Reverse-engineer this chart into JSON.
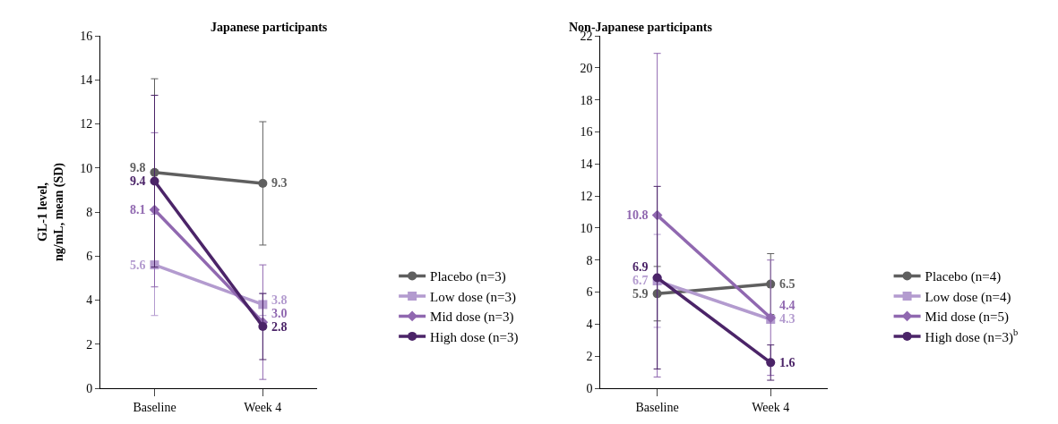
{
  "chart_data": [
    {
      "type": "line",
      "title": "Japanese participants",
      "ylabel": "GL-1 level,\nng/mL, mean (SD)",
      "categories": [
        "Baseline",
        "Week 4"
      ],
      "ylim": [
        0,
        16
      ],
      "yticks": [
        0,
        2,
        4,
        6,
        8,
        10,
        12,
        14,
        16
      ],
      "grid": false,
      "legend": "right",
      "series": [
        {
          "name": "Placebo (n=3)",
          "color": "#5f5f5f",
          "marker": "circle",
          "values": [
            9.8,
            9.3
          ],
          "value_labels": [
            "9.8",
            "9.3"
          ],
          "errors": [
            4.25,
            2.8
          ]
        },
        {
          "name": "Low dose (n=3)",
          "color": "#b39bcf",
          "marker": "square",
          "values": [
            5.6,
            3.8
          ],
          "value_labels": [
            "5.6",
            "3.8"
          ],
          "errors": [
            2.3,
            0.5
          ]
        },
        {
          "name": "Mid dose (n=3)",
          "color": "#9068b0",
          "marker": "diamond",
          "values": [
            8.1,
            3.0
          ],
          "value_labels": [
            "8.1",
            "3.0"
          ],
          "errors": [
            3.5,
            2.6
          ]
        },
        {
          "name": "High dose (n=3)",
          "color": "#4b2468",
          "marker": "circle",
          "values": [
            9.4,
            2.8
          ],
          "value_labels": [
            "9.4",
            "2.8"
          ],
          "errors": [
            3.9,
            1.5
          ]
        }
      ]
    },
    {
      "type": "line",
      "title": "Non-Japanese participants",
      "categories": [
        "Baseline",
        "Week 4"
      ],
      "ylim": [
        0,
        22
      ],
      "yticks": [
        0,
        2,
        4,
        6,
        8,
        10,
        12,
        14,
        16,
        18,
        20,
        22
      ],
      "grid": false,
      "legend": "right",
      "series": [
        {
          "name": "Placebo (n=4)",
          "color": "#5f5f5f",
          "marker": "circle",
          "values": [
            5.9,
            6.5
          ],
          "value_labels": [
            "5.9",
            "6.5"
          ],
          "errors": [
            1.7,
            1.9
          ]
        },
        {
          "name": "Low dose (n=4)",
          "color": "#b39bcf",
          "marker": "square",
          "values": [
            6.7,
            4.3
          ],
          "value_labels": [
            "6.7",
            "4.3"
          ],
          "errors": [
            2.9,
            null
          ]
        },
        {
          "name": "Mid dose (n=5)",
          "color": "#9068b0",
          "marker": "diamond",
          "values": [
            10.8,
            4.4
          ],
          "value_labels": [
            "10.8",
            "4.4"
          ],
          "errors": [
            10.1,
            3.6
          ]
        },
        {
          "name": "High dose (n=3)$^{b}$",
          "color": "#4b2468",
          "marker": "circle",
          "values": [
            6.9,
            1.6
          ],
          "value_labels": [
            "6.9",
            "1.6"
          ],
          "errors": [
            5.7,
            1.1
          ]
        }
      ]
    }
  ]
}
